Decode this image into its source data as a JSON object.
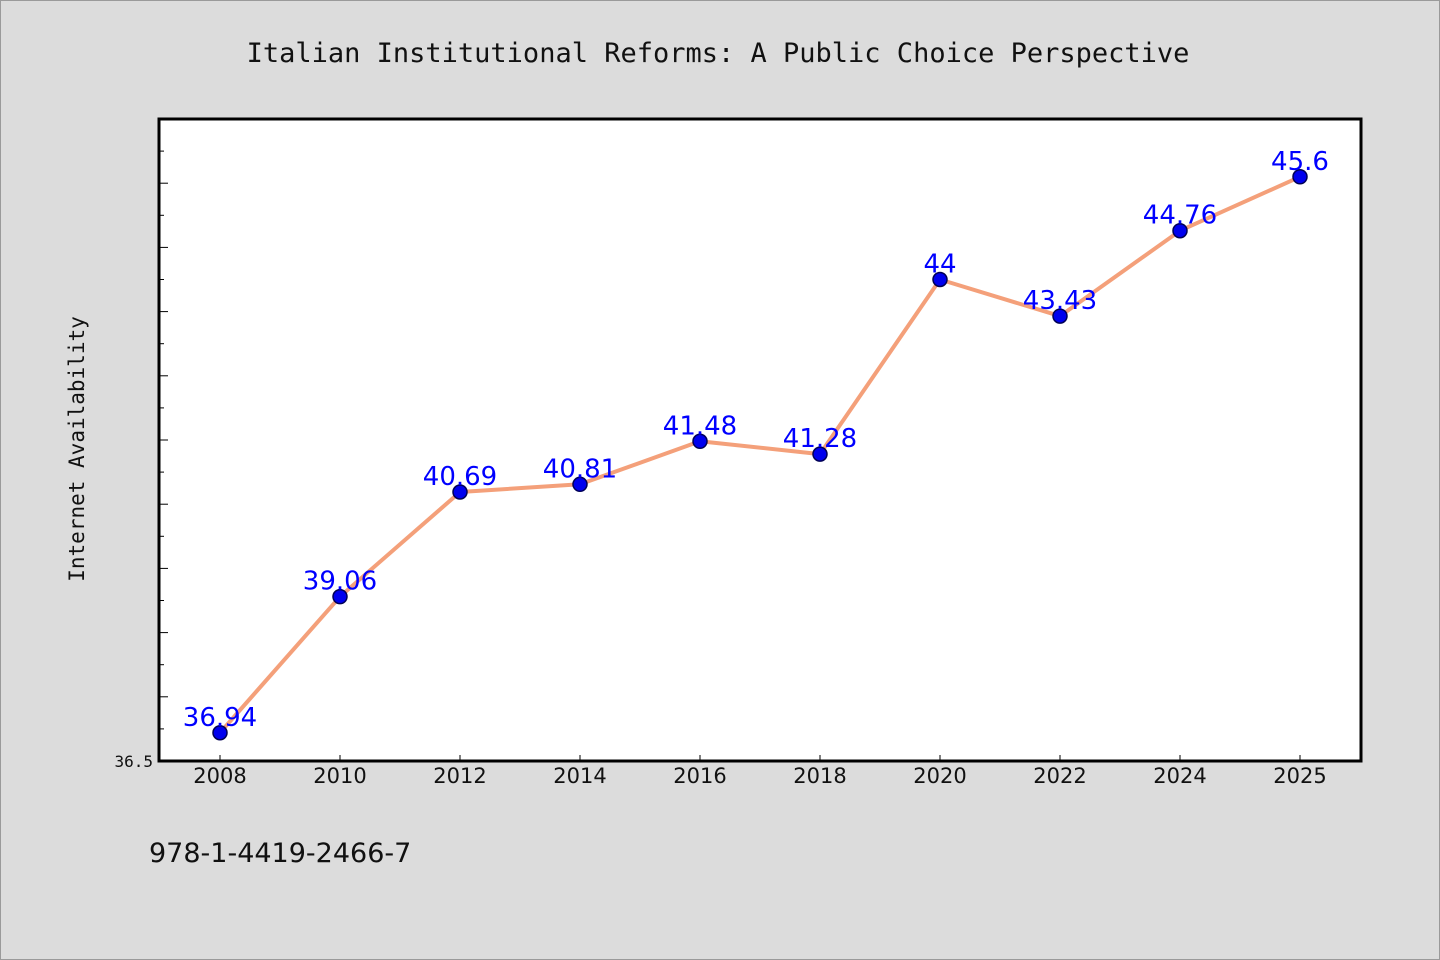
{
  "chart_data": {
    "type": "line",
    "title": "Italian Institutional Reforms: A Public Choice Perspective",
    "ylabel": "Internet Availability",
    "xlabel": "",
    "categories": [
      "2008",
      "2010",
      "2012",
      "2014",
      "2016",
      "2018",
      "2020",
      "2022",
      "2024",
      "2025"
    ],
    "series": [
      {
        "values": [
          36.94,
          39.06,
          40.69,
          40.81,
          41.48,
          41.28,
          44,
          43.43,
          44.76,
          45.6
        ],
        "labels": [
          "36.94",
          "39.06",
          "40.69",
          "40.81",
          "41.48",
          "41.28",
          "44",
          "43.43",
          "44.76",
          "45.6"
        ]
      }
    ],
    "ylim": [
      36.5,
      46.5
    ],
    "ytick_labels": [
      "36.5"
    ],
    "grid": false,
    "colors": {
      "line": "#f4a07a",
      "marker": "#0000ee",
      "marker_edge": "#000055",
      "label": "#0000ff",
      "plot_bg": "#ffffff",
      "page_bg": "#dcdcdc"
    }
  },
  "footer": {
    "isbn": "978-1-4419-2466-7"
  }
}
